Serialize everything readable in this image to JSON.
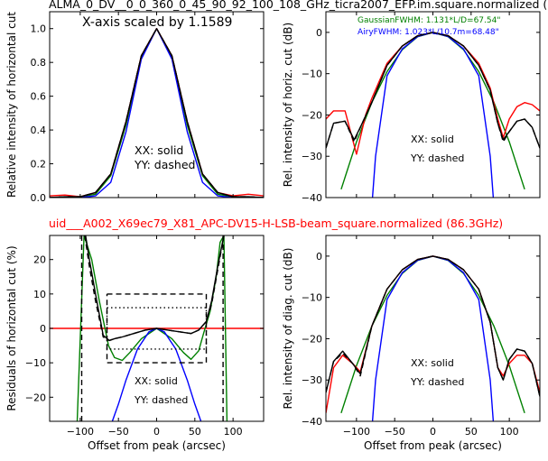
{
  "header": {
    "title_top": "ALMA_0_DV__0_0_360_0_45_90_92_100_108_GHz_ticra2007_EFP.im.square.normalized (",
    "title_mid": "uid___A002_X69ec79_X81_APC-DV15-H-LSB-beam_square.normalized (86.3GHz)"
  },
  "colors": {
    "XX_measured": "#000000",
    "YY_measured": "#000000",
    "model_ticra": "#ff0000",
    "gaussian": "#008000",
    "airy": "#0000ff",
    "title_mid": "#ff0000"
  },
  "chart_data": [
    {
      "id": "top_left",
      "type": "line",
      "xlabel": "",
      "ylabel": "Relative intensity of horizontal cut",
      "xlim": [
        -140,
        140
      ],
      "ylim": [
        0.0,
        1.1
      ],
      "xticks": [
        -100,
        -50,
        0,
        50,
        100
      ],
      "yticks": [
        0.0,
        0.2,
        0.4,
        0.6,
        0.8,
        1.0
      ],
      "yticklabels": [
        "0.0",
        "0.2",
        "0.4",
        "0.6",
        "0.8",
        "1.0"
      ],
      "annotations": [
        "X-axis scaled by 1.1589",
        "XX: solid",
        "YY: dashed"
      ],
      "series": [
        {
          "color": "green",
          "style": "solid",
          "x": [
            -140,
            -100,
            -80,
            -60,
            -40,
            -20,
            0,
            20,
            40,
            60,
            80,
            100,
            140
          ],
          "y": [
            0,
            0.005,
            0.02,
            0.13,
            0.43,
            0.83,
            1.0,
            0.83,
            0.43,
            0.13,
            0.02,
            0.005,
            0
          ]
        },
        {
          "color": "blue",
          "style": "solid",
          "x": [
            -140,
            -100,
            -80,
            -60,
            -40,
            -20,
            0,
            20,
            40,
            60,
            80,
            100,
            140
          ],
          "y": [
            0,
            0,
            0.01,
            0.09,
            0.39,
            0.82,
            1.0,
            0.82,
            0.39,
            0.09,
            0.01,
            0,
            0
          ]
        },
        {
          "color": "red",
          "style": "solid",
          "x": [
            -140,
            -120,
            -100,
            -80,
            -60,
            -40,
            -20,
            0,
            20,
            40,
            60,
            80,
            100,
            120,
            140
          ],
          "y": [
            0.01,
            0.015,
            0.005,
            0.03,
            0.14,
            0.45,
            0.84,
            1.0,
            0.84,
            0.45,
            0.14,
            0.03,
            0.01,
            0.02,
            0.01
          ]
        },
        {
          "color": "black",
          "style": "solid",
          "x": [
            -140,
            -120,
            -100,
            -80,
            -60,
            -40,
            -20,
            0,
            20,
            40,
            60,
            80,
            100,
            120,
            140
          ],
          "y": [
            0,
            0.005,
            0.005,
            0.03,
            0.14,
            0.45,
            0.84,
            1.0,
            0.84,
            0.45,
            0.14,
            0.03,
            0.005,
            0.005,
            0
          ]
        },
        {
          "color": "black",
          "style": "dashed",
          "x": [
            -140,
            -120,
            -100,
            -80,
            -60,
            -40,
            -20,
            0,
            20,
            40,
            60,
            80,
            100,
            120,
            140
          ],
          "y": [
            0,
            0.005,
            0.005,
            0.03,
            0.14,
            0.45,
            0.84,
            1.0,
            0.84,
            0.45,
            0.14,
            0.03,
            0.005,
            0.005,
            0
          ]
        }
      ]
    },
    {
      "id": "top_right",
      "type": "line",
      "xlabel": "",
      "ylabel": "Rel. intensity of horiz. cut (dB)",
      "xlim": [
        -140,
        140
      ],
      "ylim": [
        -40,
        5
      ],
      "xticks": [
        -100,
        -50,
        0,
        50,
        100
      ],
      "yticks": [
        -40,
        -30,
        -20,
        -10,
        0
      ],
      "yticklabels": [
        "−40",
        "−30",
        "−20",
        "−10",
        "0"
      ],
      "annotations": [
        "GaussianFWHM: 1.131*L/D=67.54\"",
        "AiryFWHM: 1.023*L/10.7m=68.48\"",
        "XX: solid",
        "YY: dashed"
      ],
      "series": [
        {
          "color": "green",
          "style": "solid",
          "x": [
            -120,
            -100,
            -80,
            -60,
            -40,
            -20,
            0,
            20,
            40,
            60,
            80,
            100,
            120
          ],
          "y": [
            -38,
            -26.5,
            -17,
            -9.5,
            -4.2,
            -1.05,
            0,
            -1.05,
            -4.2,
            -9.5,
            -17,
            -26.5,
            -38
          ]
        },
        {
          "color": "blue",
          "style": "solid",
          "x": [
            -79,
            -75,
            -60,
            -40,
            -20,
            0,
            20,
            40,
            60,
            75,
            79
          ],
          "y": [
            -40,
            -30,
            -10.5,
            -4,
            -1,
            0,
            -1,
            -4,
            -10.5,
            -30,
            -40
          ]
        },
        {
          "color": "red",
          "style": "solid",
          "x": [
            -140,
            -130,
            -115,
            -100,
            -88,
            -80,
            -60,
            -40,
            -20,
            0,
            20,
            40,
            60,
            75,
            85,
            92,
            100,
            110,
            120,
            130,
            140
          ],
          "y": [
            -21,
            -19,
            -19,
            -29.5,
            -20,
            -16,
            -7.5,
            -3.3,
            -0.8,
            0,
            -0.8,
            -3.3,
            -7.5,
            -13.5,
            -21,
            -25.5,
            -21,
            -18,
            -17,
            -17.5,
            -19
          ]
        },
        {
          "color": "black",
          "style": "solid",
          "x": [
            -140,
            -130,
            -115,
            -103,
            -95,
            -80,
            -60,
            -40,
            -20,
            0,
            20,
            40,
            60,
            75,
            85,
            92,
            100,
            110,
            120,
            130,
            140
          ],
          "y": [
            -28,
            -22,
            -21.5,
            -26,
            -23,
            -17,
            -8,
            -3.3,
            -0.8,
            0,
            -0.8,
            -3.3,
            -8,
            -14,
            -22,
            -26,
            -24,
            -21.5,
            -21,
            -23,
            -28
          ]
        },
        {
          "color": "black",
          "style": "dashed",
          "x": [
            -140,
            -130,
            -115,
            -103,
            -95,
            -80,
            -60,
            -40,
            -20,
            0,
            20,
            40,
            60,
            75,
            85,
            92,
            100,
            110,
            120,
            130,
            140
          ],
          "y": [
            -28,
            -22,
            -21.5,
            -26.5,
            -23,
            -17,
            -8,
            -3.3,
            -0.8,
            0,
            -0.8,
            -3.3,
            -8,
            -14,
            -22,
            -26.5,
            -24,
            -21.5,
            -21,
            -23,
            -28
          ]
        }
      ]
    },
    {
      "id": "bottom_left",
      "type": "line",
      "xlabel": "Offset from peak (arcsec)",
      "ylabel": "Residuals of horizontal cut (%)",
      "xlim": [
        -140,
        140
      ],
      "ylim": [
        -27,
        27
      ],
      "xticks": [
        -100,
        -50,
        0,
        50,
        100
      ],
      "xticklabels": [
        "−100",
        "−50",
        "0",
        "50",
        "100"
      ],
      "yticks": [
        -20,
        -10,
        0,
        10,
        20
      ],
      "yticklabels": [
        "−20",
        "−10",
        "0",
        "10",
        "20"
      ],
      "annotations": [
        "XX: solid",
        "YY: dashed"
      ],
      "series": [
        {
          "color": "red",
          "style": "solid",
          "x": [
            -140,
            140
          ],
          "y": [
            0,
            0
          ]
        },
        {
          "color": "green",
          "style": "solid",
          "x": [
            -104,
            -95,
            -85,
            -75,
            -63,
            -55,
            -45,
            -35,
            -20,
            0,
            20,
            35,
            45,
            55,
            62,
            70,
            78,
            83,
            88,
            92
          ],
          "y": [
            -27,
            27,
            20,
            8,
            -5,
            -8.5,
            -9.3,
            -7,
            -3,
            0,
            -3,
            -7,
            -9,
            -6.5,
            -1,
            5,
            15,
            25,
            27,
            -27
          ]
        },
        {
          "color": "blue",
          "style": "solid",
          "x": [
            -58,
            -50,
            -40,
            -25,
            -10,
            0,
            10,
            25,
            40,
            50,
            58
          ],
          "y": [
            -27,
            -22,
            -15,
            -6,
            -1,
            0,
            -1,
            -6,
            -15,
            -22,
            -27
          ]
        },
        {
          "color": "black",
          "style": "solid",
          "x": [
            -93,
            -88,
            -80,
            -70,
            -62,
            -55,
            -45,
            -30,
            -15,
            0,
            15,
            30,
            45,
            55,
            65,
            72,
            80,
            88
          ],
          "y": [
            27,
            20,
            10,
            -2,
            -3.5,
            -3,
            -2.5,
            -1.5,
            -0.5,
            0,
            -0.5,
            -1,
            -1.5,
            -0.5,
            2,
            8,
            18,
            27
          ]
        },
        {
          "color": "black",
          "style": "dashed",
          "x": [
            -94,
            -88,
            -80,
            -70,
            -62,
            -55,
            -45,
            -30,
            -15,
            0,
            15,
            30,
            45,
            55,
            65,
            72,
            80,
            88
          ],
          "y": [
            27,
            18,
            8,
            -2.5,
            -3.5,
            -3,
            -2.5,
            -1.5,
            -0.5,
            0,
            -0.5,
            -1,
            -1.5,
            -0.5,
            2,
            7,
            17,
            27
          ]
        },
        {
          "color": "black",
          "style": "dashed",
          "x": [
            -98,
            -98
          ],
          "y": [
            -27,
            27
          ]
        },
        {
          "color": "black",
          "style": "dashed",
          "x": [
            87,
            87
          ],
          "y": [
            -27,
            27
          ]
        },
        {
          "color": "black",
          "style": "dashed",
          "x": [
            -65,
            65,
            65,
            -65,
            -65
          ],
          "y": [
            10,
            10,
            -10,
            -10,
            10
          ]
        },
        {
          "color": "black",
          "style": "dotted",
          "x": [
            -65,
            65,
            65,
            -65,
            -65
          ],
          "y": [
            6,
            6,
            -6,
            -6,
            6
          ]
        }
      ]
    },
    {
      "id": "bottom_right",
      "type": "line",
      "xlabel": "Offset from peak (arcsec)",
      "ylabel": "Rel. intensity of diag. cut (dB)",
      "xlim": [
        -140,
        140
      ],
      "ylim": [
        -40,
        5
      ],
      "xticks": [
        -100,
        -50,
        0,
        50,
        100
      ],
      "xticklabels": [
        "−100",
        "−50",
        "0",
        "50",
        "100"
      ],
      "yticks": [
        -40,
        -30,
        -20,
        -10,
        0
      ],
      "yticklabels": [
        "−40",
        "−30",
        "−20",
        "−10",
        "0"
      ],
      "annotations": [
        "XX: solid",
        "YY: dashed"
      ],
      "series": [
        {
          "color": "green",
          "style": "solid",
          "x": [
            -120,
            -100,
            -80,
            -60,
            -40,
            -20,
            0,
            20,
            40,
            60,
            80,
            100,
            120
          ],
          "y": [
            -38,
            -26.5,
            -17,
            -9.5,
            -4.2,
            -1.05,
            0,
            -1.05,
            -4.2,
            -9.5,
            -17,
            -26.5,
            -38
          ]
        },
        {
          "color": "blue",
          "style": "solid",
          "x": [
            -79,
            -75,
            -60,
            -40,
            -20,
            0,
            20,
            40,
            60,
            75,
            79
          ],
          "y": [
            -40,
            -30,
            -10.5,
            -4,
            -1,
            0,
            -1,
            -4,
            -10.5,
            -30,
            -40
          ]
        },
        {
          "color": "red",
          "style": "solid",
          "x": [
            -140,
            -130,
            -118,
            -105,
            -95,
            -80,
            -60,
            -40,
            -20,
            0,
            20,
            40,
            60,
            75,
            85,
            92,
            100,
            110,
            120,
            130,
            140
          ],
          "y": [
            -38,
            -27,
            -24,
            -26,
            -28,
            -17,
            -8,
            -3.3,
            -0.8,
            0,
            -0.8,
            -3.3,
            -8,
            -16,
            -27,
            -29,
            -26,
            -24,
            -24,
            -26,
            -33
          ]
        },
        {
          "color": "black",
          "style": "solid",
          "x": [
            -140,
            -130,
            -118,
            -105,
            -95,
            -80,
            -60,
            -40,
            -20,
            0,
            20,
            40,
            60,
            75,
            85,
            92,
            100,
            110,
            120,
            130,
            140
          ],
          "y": [
            -33,
            -25.5,
            -23,
            -26,
            -28.5,
            -17,
            -8,
            -3.3,
            -0.8,
            0,
            -0.8,
            -3.3,
            -8,
            -16,
            -27,
            -30,
            -25,
            -22.5,
            -23,
            -26,
            -34
          ]
        },
        {
          "color": "black",
          "style": "dashed",
          "x": [
            -140,
            -130,
            -118,
            -105,
            -95,
            -80,
            -60,
            -40,
            -20,
            0,
            20,
            40,
            60,
            75,
            85,
            92,
            100,
            110,
            120,
            130,
            140
          ],
          "y": [
            -33,
            -25.5,
            -23.5,
            -26,
            -29,
            -17,
            -8,
            -3.3,
            -0.8,
            0,
            -0.8,
            -3.3,
            -8,
            -16,
            -27,
            -30,
            -25,
            -22.5,
            -23,
            -26,
            -34
          ]
        }
      ]
    }
  ]
}
